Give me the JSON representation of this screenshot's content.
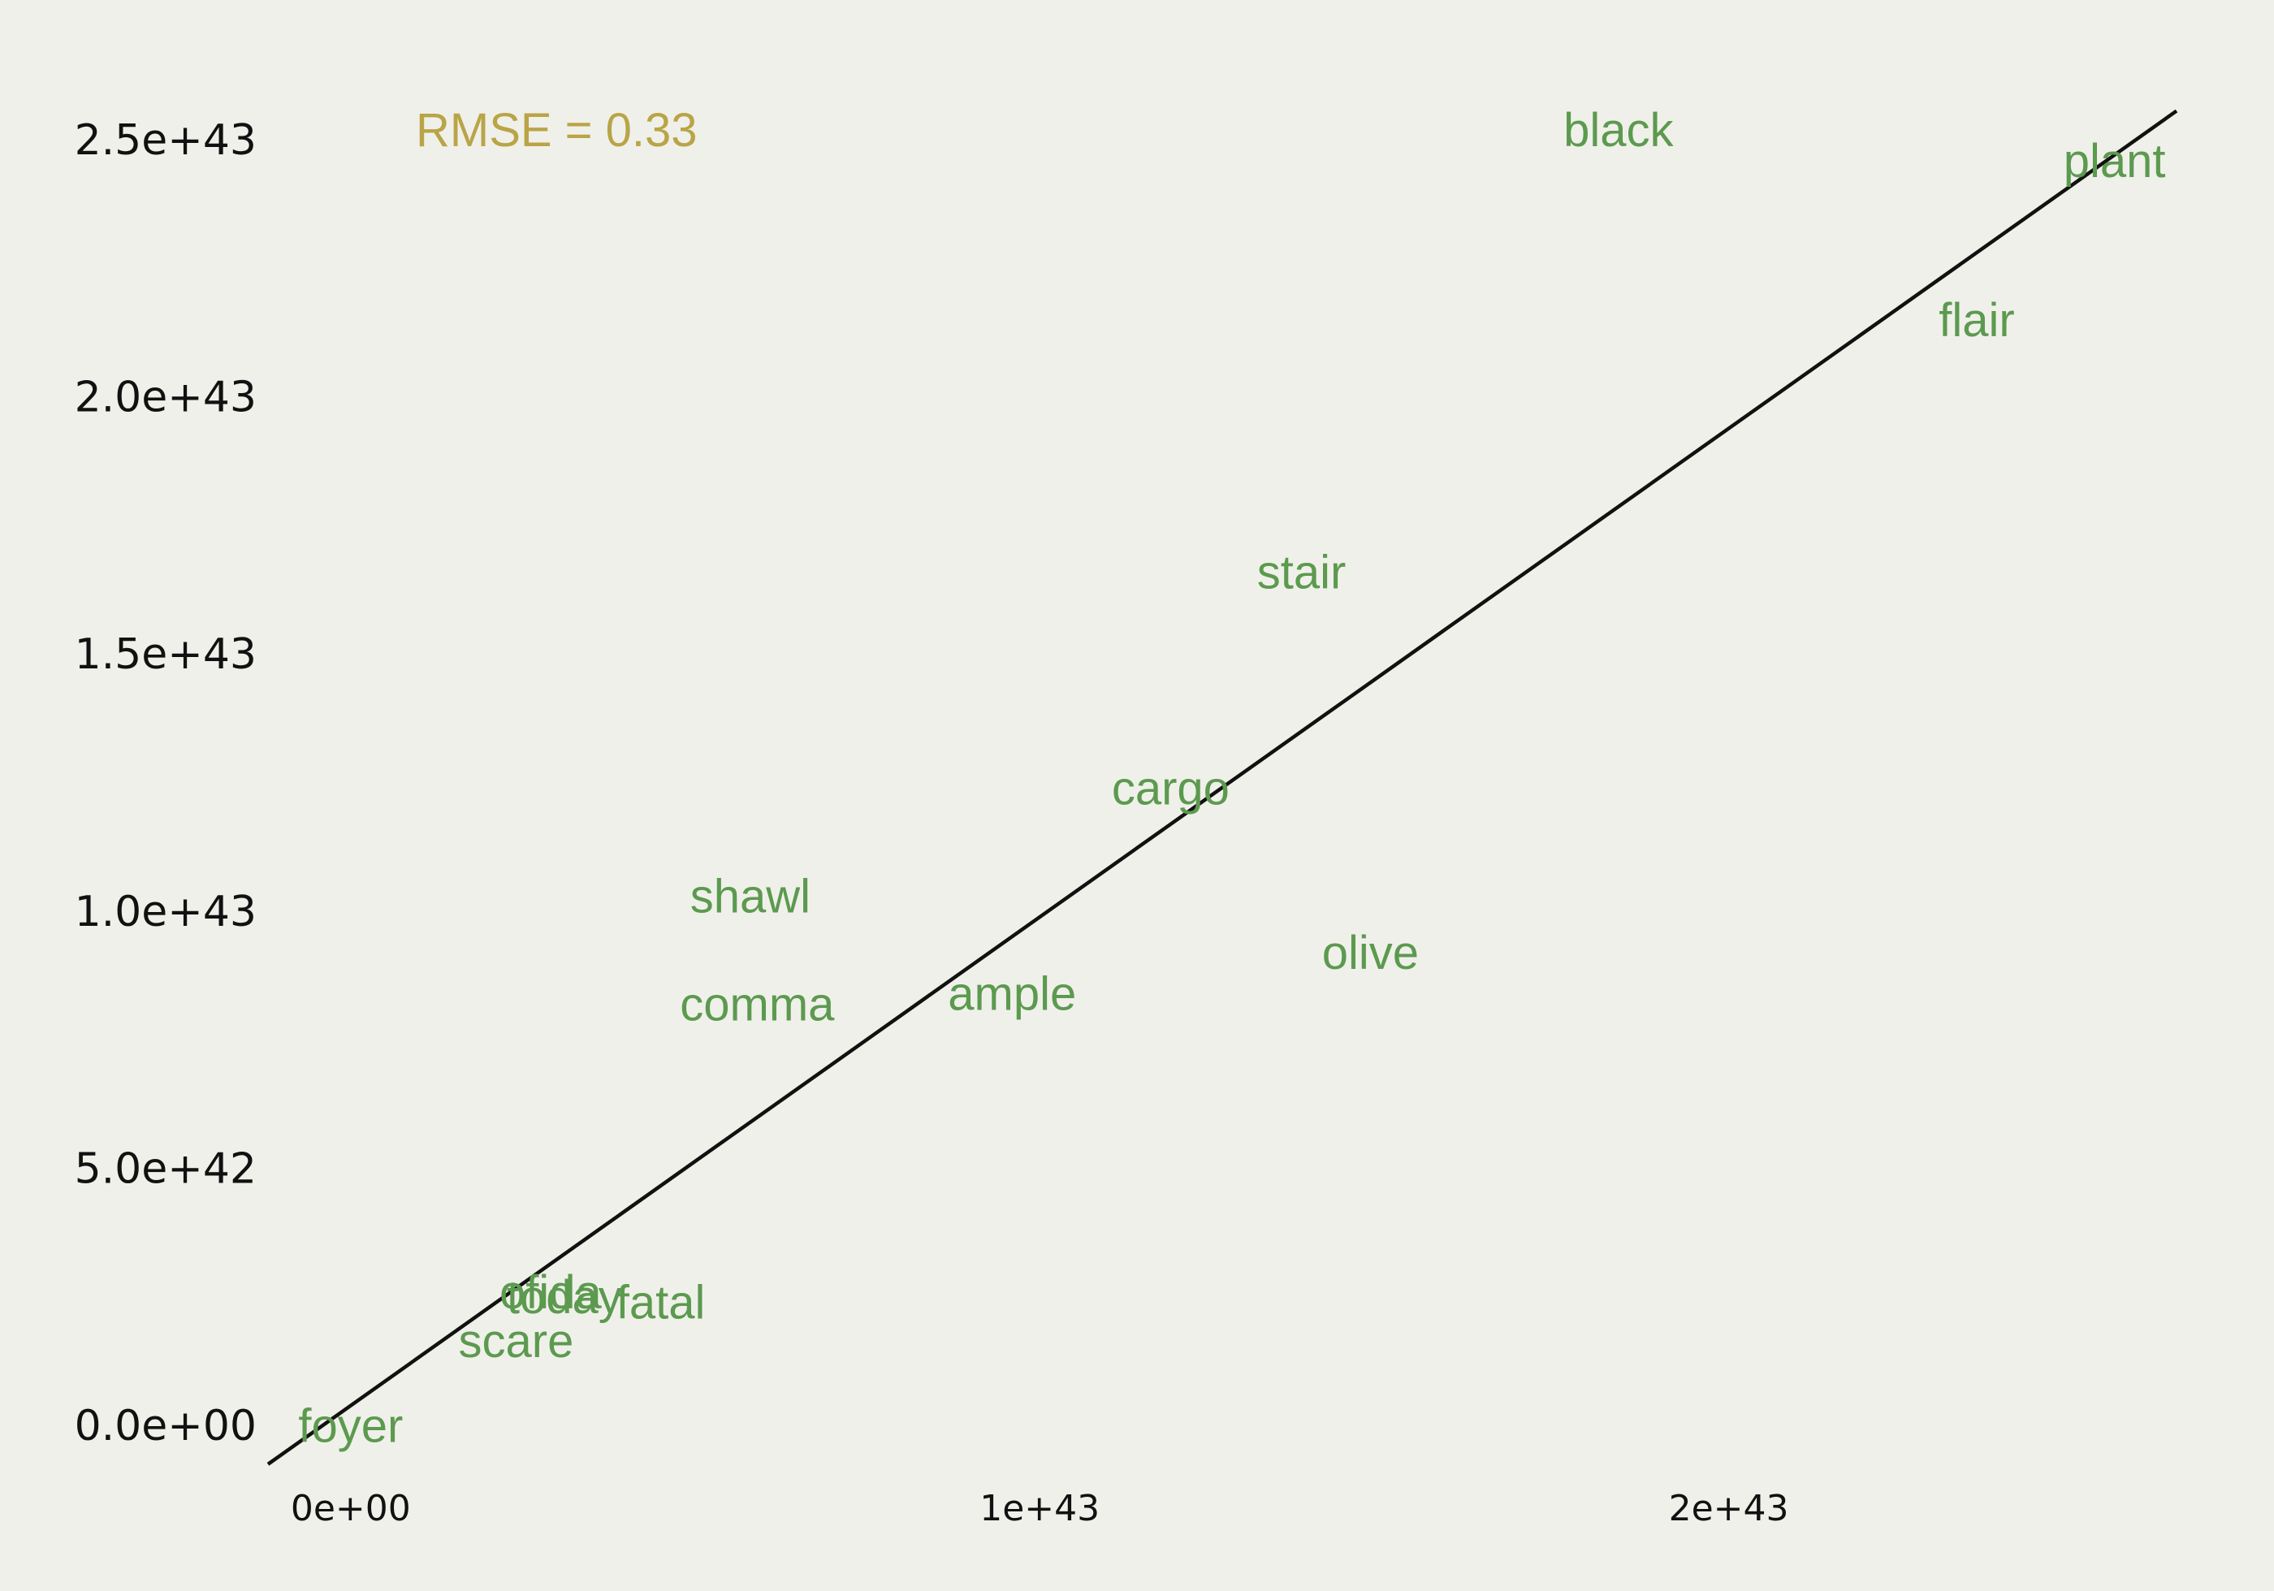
{
  "chart_data": {
    "type": "scatter",
    "marker": "text-labels",
    "title": "",
    "xlabel": "",
    "ylabel": "",
    "xlim": [
      -1.2e+42,
      2.65e+43
    ],
    "ylim": [
      -1.2e+42,
      2.65e+43
    ],
    "x_ticks": [
      {
        "value": 0,
        "label": "0e+00"
      },
      {
        "value": 1e+43,
        "label": "1e+43"
      },
      {
        "value": 2e+43,
        "label": "2e+43"
      }
    ],
    "y_ticks": [
      {
        "value": 0,
        "label": "0.0e+00"
      },
      {
        "value": 5e+42,
        "label": "5.0e+42"
      },
      {
        "value": 1e+43,
        "label": "1.0e+43"
      },
      {
        "value": 1.5e+43,
        "label": "1.5e+43"
      },
      {
        "value": 2e+43,
        "label": "2.0e+43"
      },
      {
        "value": 2.5e+43,
        "label": "2.5e+43"
      }
    ],
    "points": [
      {
        "label": "foyer",
        "x": 0.0,
        "y": 0.0
      },
      {
        "label": "scare",
        "x": 2.4e+42,
        "y": 1.65e+42
      },
      {
        "label": "ofida",
        "x": 2.9e+42,
        "y": 2.6e+42
      },
      {
        "label": "today",
        "x": 3.1e+42,
        "y": 2.5e+42
      },
      {
        "label": "fatal",
        "x": 4.5e+42,
        "y": 2.4e+42
      },
      {
        "label": "comma",
        "x": 5.9e+42,
        "y": 8.2e+42
      },
      {
        "label": "shawl",
        "x": 5.8e+42,
        "y": 1.03e+43
      },
      {
        "label": "ample",
        "x": 9.6e+42,
        "y": 8.4e+42
      },
      {
        "label": "cargo",
        "x": 1.19e+43,
        "y": 1.24e+43
      },
      {
        "label": "stair",
        "x": 1.38e+43,
        "y": 1.66e+43
      },
      {
        "label": "olive",
        "x": 1.48e+43,
        "y": 9.2e+42
      },
      {
        "label": "black",
        "x": 1.84e+43,
        "y": 2.52e+43
      },
      {
        "label": "flair",
        "x": 2.36e+43,
        "y": 2.15e+43
      },
      {
        "label": "plant",
        "x": 2.56e+43,
        "y": 2.46e+43
      }
    ],
    "fit_line": {
      "slope": 0.95,
      "intercept": 4e+41
    },
    "annotation": "RMSE = 0.33",
    "grid": false,
    "legend": "none",
    "colors": {
      "background": "#f0f0ea",
      "point_label": "#5c9a4f",
      "annotation": "#b9a447",
      "fit_line": "#111111",
      "tick_label": "#111111"
    }
  }
}
